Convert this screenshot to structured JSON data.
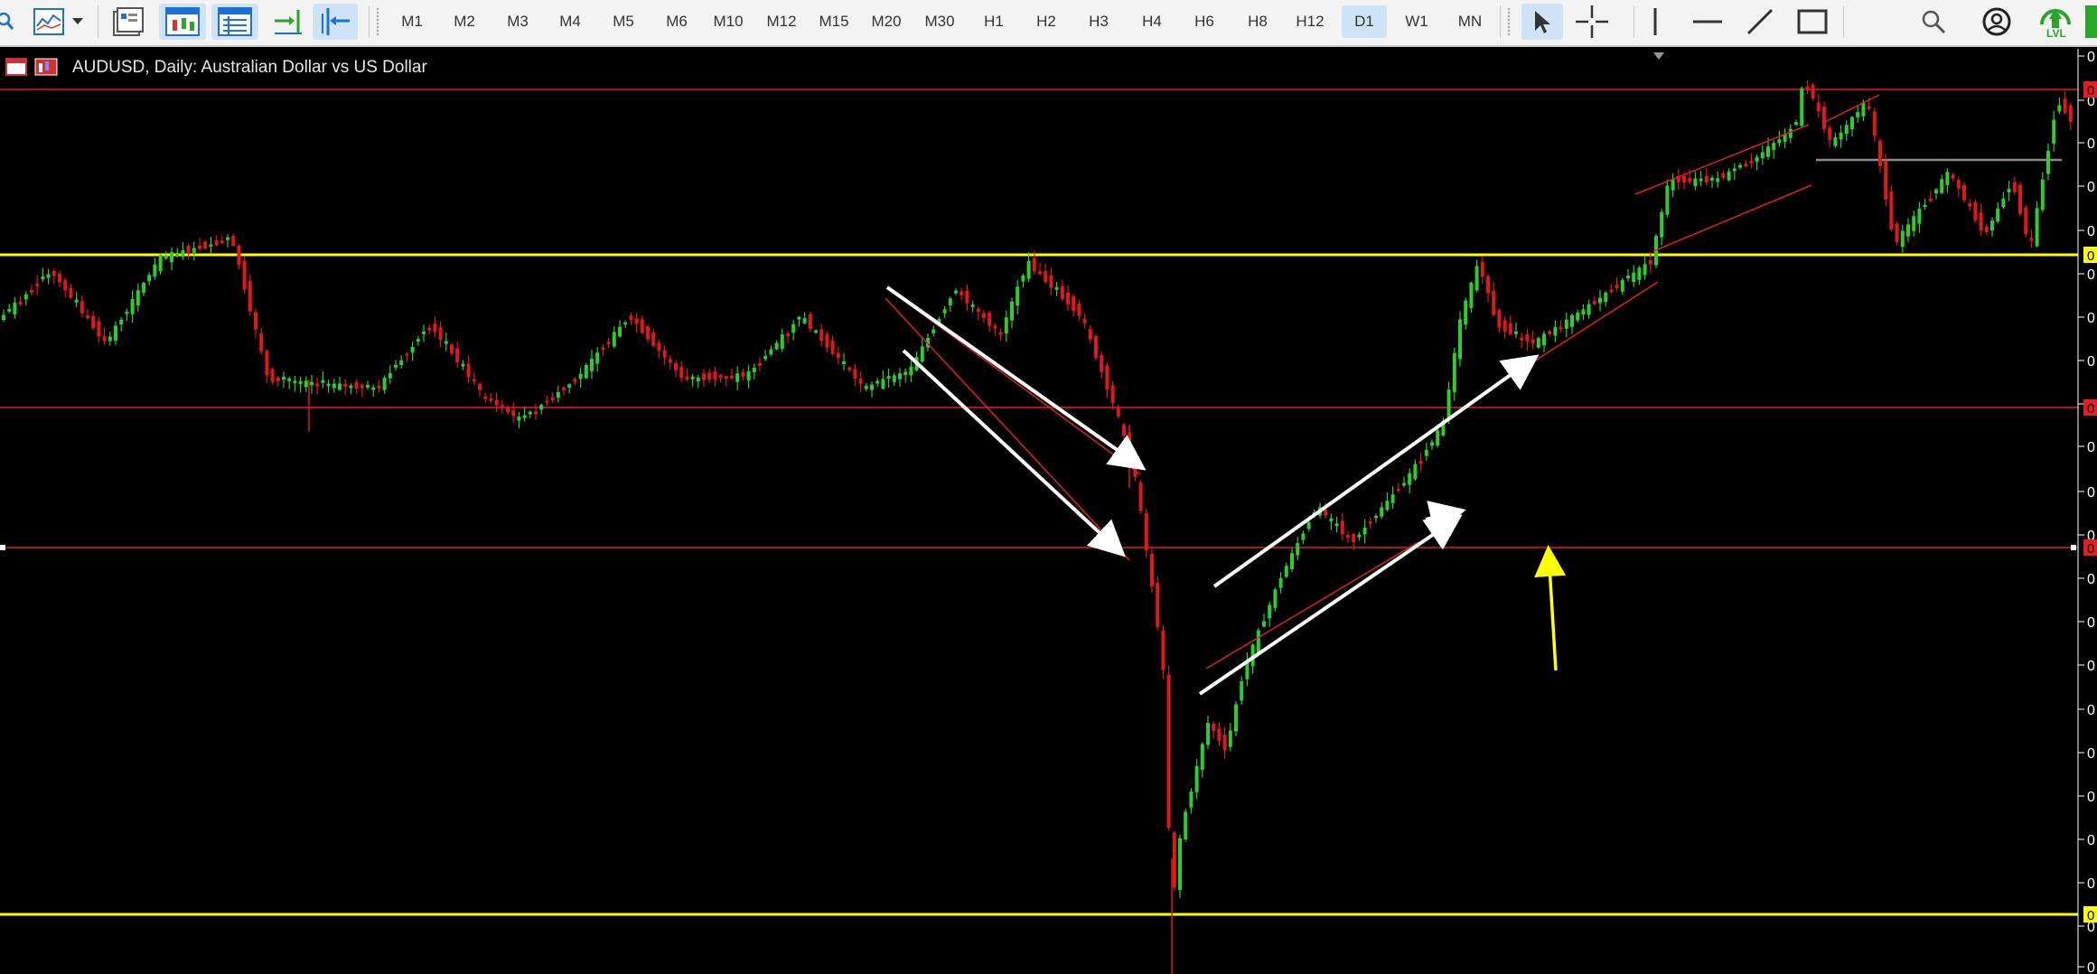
{
  "app": {
    "chart_title": "AUDUSD, Daily:  Australian Dollar vs US Dollar"
  },
  "toolbar": {
    "timeframes": [
      "M1",
      "M2",
      "M3",
      "M4",
      "M5",
      "M6",
      "M10",
      "M12",
      "M15",
      "M20",
      "M30",
      "H1",
      "H2",
      "H3",
      "H4",
      "H6",
      "H8",
      "H12",
      "D1",
      "W1",
      "MN"
    ],
    "active_timeframe": "D1",
    "left_icons": [
      "search-icon",
      "indicators-icon",
      "chevron-down-icon",
      "templates-icon",
      "chart-trade-icon",
      "chart-list-icon",
      "autoscroll-icon",
      "chart-shift-icon"
    ],
    "tools": [
      "cursor-icon",
      "crosshair-icon",
      "vertical-line-icon",
      "horizontal-line-icon",
      "trend-line-icon",
      "rectangle-icon"
    ],
    "right_icons": [
      "search-icon",
      "account-icon",
      "lvl-icon"
    ],
    "lvl_label": "LVL"
  },
  "colors": {
    "background": "#000000",
    "bull": "#2ecc2e",
    "bear": "#e01818",
    "support_line": "#ffff00",
    "level_line": "#e02020",
    "arrow": "#ffffff",
    "yellow_arrow": "#ffff00",
    "gray_line": "#8c8c8c"
  },
  "price_axis_badges": [
    {
      "color": "#e02020",
      "label": "0"
    },
    {
      "color": "#ffff00",
      "label": "0"
    },
    {
      "color": "#e02020",
      "label": "0"
    },
    {
      "color": "#e02020",
      "label": "0"
    },
    {
      "color": "#ffff00",
      "label": "0"
    }
  ]
}
